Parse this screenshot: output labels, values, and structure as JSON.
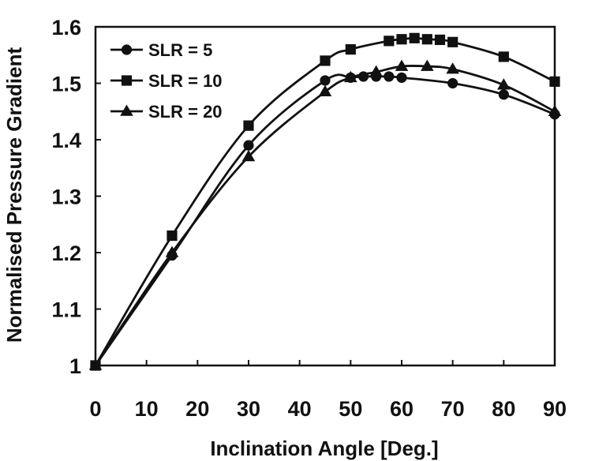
{
  "chart_data": {
    "type": "line",
    "title": "",
    "xlabel": "Inclination Angle [Deg.]",
    "ylabel": "Normalised Pressure Gradient",
    "xlim": [
      0,
      90
    ],
    "ylim": [
      1,
      1.6
    ],
    "xticks": [
      0,
      10,
      20,
      30,
      40,
      50,
      60,
      70,
      80,
      90
    ],
    "yticks": [
      1,
      1.1,
      1.2,
      1.3,
      1.4,
      1.5,
      1.6
    ],
    "ytick_labels": [
      "1",
      "1.1",
      "1.2",
      "1.3",
      "1.4",
      "1.5",
      "1.6"
    ],
    "grid": false,
    "legend_position": "top-left",
    "series": [
      {
        "name": "SLR = 5",
        "marker": "circle",
        "x": [
          0,
          15,
          30,
          45,
          50,
          52.5,
          55,
          57.5,
          60,
          70,
          80,
          90
        ],
        "y": [
          1.0,
          1.195,
          1.39,
          1.505,
          1.51,
          1.512,
          1.512,
          1.512,
          1.51,
          1.5,
          1.48,
          1.445
        ]
      },
      {
        "name": "SLR = 10",
        "marker": "square",
        "x": [
          0,
          15,
          30,
          45,
          50,
          57.5,
          60,
          62.5,
          65,
          67.5,
          70,
          80,
          90
        ],
        "y": [
          1.0,
          1.23,
          1.425,
          1.54,
          1.56,
          1.575,
          1.578,
          1.58,
          1.578,
          1.577,
          1.573,
          1.547,
          1.503
        ]
      },
      {
        "name": "SLR = 20",
        "marker": "triangle",
        "x": [
          0,
          15,
          30,
          45,
          50,
          55,
          60,
          65,
          70,
          80,
          90
        ],
        "y": [
          1.0,
          1.2,
          1.37,
          1.485,
          1.51,
          1.52,
          1.53,
          1.53,
          1.525,
          1.497,
          1.45
        ]
      }
    ]
  },
  "colors": {
    "line": "#111111",
    "background": "#ffffff"
  }
}
